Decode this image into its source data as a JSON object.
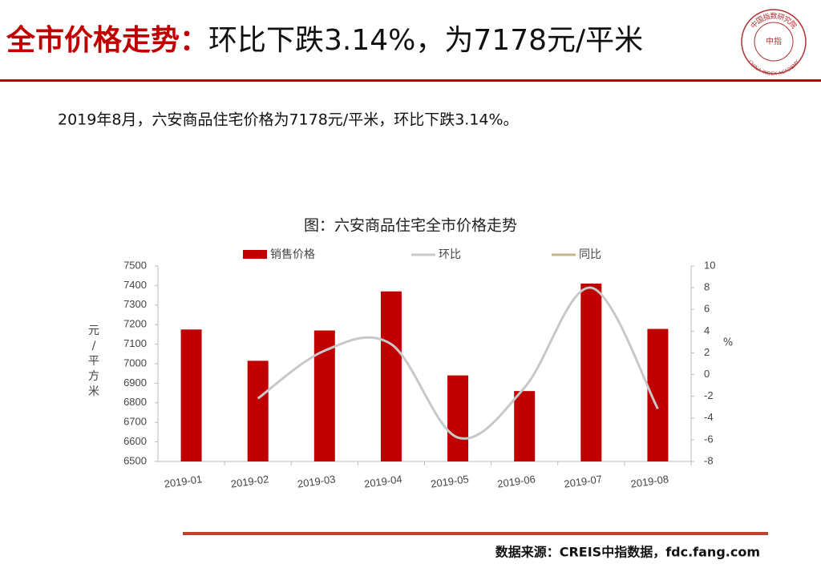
{
  "header": {
    "title_highlight": "全市价格走势：",
    "title_rest": "环比下跌3.14%，为7178元/平米",
    "logo_cn": "中国指数研究院",
    "logo_center": "中指",
    "logo_en": "CHINA INDEX ACADEMY"
  },
  "summary": "2019年8月，六安商品住宅价格为7178元/平米，环比下跌3.14%。",
  "source": "数据来源：CREIS中指数据，fdc.fang.com",
  "chart_data": {
    "type": "bar",
    "title": "图：六安商品住宅全市价格走势",
    "categories": [
      "2019-01",
      "2019-02",
      "2019-03",
      "2019-04",
      "2019-05",
      "2019-06",
      "2019-07",
      "2019-08"
    ],
    "series": [
      {
        "name": "销售价格",
        "type": "bar",
        "color": "#c00000",
        "values": [
          7175,
          7015,
          7170,
          7370,
          6940,
          6860,
          7410,
          7178
        ]
      },
      {
        "name": "环比",
        "type": "line",
        "axis": "y2",
        "color": "#c8c8c8",
        "values": [
          null,
          -2.2,
          2.2,
          2.8,
          -5.8,
          -1.2,
          8.0,
          -3.14
        ]
      },
      {
        "name": "同比",
        "type": "line",
        "axis": "y2",
        "color": "#c4b48c",
        "values": [
          null,
          null,
          null,
          null,
          null,
          null,
          null,
          null
        ]
      }
    ],
    "ylabel": [
      "元",
      "/",
      "平",
      "方",
      "米"
    ],
    "y2label": "%",
    "ylim": [
      6500,
      7500
    ],
    "yticks": [
      6500,
      6600,
      6700,
      6800,
      6900,
      7000,
      7100,
      7200,
      7300,
      7400,
      7500
    ],
    "y2lim": [
      -8,
      10
    ],
    "y2ticks": [
      -8,
      -6,
      -4,
      -2,
      0,
      2,
      4,
      6,
      8,
      10
    ],
    "grid": false,
    "legend": "top"
  }
}
